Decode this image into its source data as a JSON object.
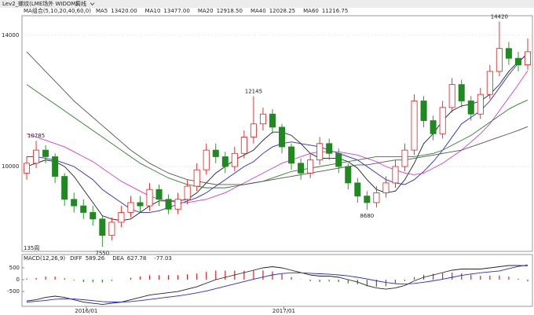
{
  "header": {
    "instrument": "Lev2_螺纹(LME场外 WIDOM)",
    "period": "周线"
  },
  "chart_data": [
    {
      "type": "candlestick",
      "legend_title": "MA组合(5,10,20,40,60,0)",
      "period_label": "135周",
      "ylim": [
        7413,
        14599
      ],
      "yticks": [
        14000,
        10000
      ],
      "grid": true,
      "xlim": [
        -0.5,
        53.5
      ],
      "xticks": [
        {
          "value": 6.3,
          "label": "2016/01"
        },
        {
          "value": 27.2,
          "label": "2017/01"
        }
      ],
      "up_color": "#e02020",
      "down_color": "#1f8a1f",
      "open": [
        9800,
        10100,
        10500,
        10300,
        9700,
        9000,
        8800,
        8600,
        8400,
        7900,
        8300,
        8600,
        8900,
        8800,
        9300,
        9000,
        8700,
        9000,
        9400,
        9900,
        10500,
        10300,
        10000,
        10400,
        10900,
        11300,
        11600,
        11200,
        10600,
        10100,
        9800,
        10200,
        10700,
        10400,
        10000,
        9500,
        9100,
        8900,
        9200,
        9500,
        10000,
        10500,
        12000,
        11400,
        11000,
        11800,
        12500,
        12000,
        11600,
        12200,
        12900,
        13600,
        13300,
        13100
      ],
      "high": [
        10300,
        10785,
        10650,
        10400,
        9800,
        9200,
        9000,
        8800,
        8500,
        8450,
        8800,
        9100,
        9100,
        9500,
        9450,
        9150,
        9200,
        9600,
        10100,
        10700,
        10700,
        10450,
        10600,
        11100,
        12145,
        11800,
        11750,
        11300,
        10700,
        10250,
        10400,
        10900,
        10850,
        10550,
        10100,
        9650,
        9250,
        9400,
        9700,
        10200,
        10700,
        12200,
        12150,
        11550,
        12000,
        12700,
        12650,
        12150,
        12400,
        13100,
        14420,
        13800,
        13500,
        13900
      ],
      "low": [
        9600,
        9950,
        10100,
        9500,
        8800,
        8600,
        8400,
        8200,
        7550,
        7750,
        8150,
        8450,
        8600,
        8650,
        8800,
        8550,
        8550,
        8850,
        9250,
        9750,
        10100,
        9800,
        9850,
        10250,
        10700,
        11100,
        11000,
        10400,
        9900,
        9600,
        9650,
        10050,
        10200,
        9800,
        9300,
        8900,
        8680,
        8750,
        9050,
        9350,
        9850,
        10350,
        11200,
        10800,
        10850,
        11650,
        11800,
        11400,
        11450,
        12050,
        12750,
        13100,
        12900,
        12950
      ],
      "close": [
        10100,
        10500,
        10300,
        9700,
        9000,
        8800,
        8600,
        8400,
        7900,
        8300,
        8600,
        8900,
        8800,
        9300,
        9000,
        8700,
        9000,
        9400,
        9900,
        10500,
        10300,
        10000,
        10400,
        10900,
        11300,
        11600,
        11200,
        10600,
        10100,
        9800,
        10200,
        10700,
        10400,
        10000,
        9500,
        9100,
        8900,
        9200,
        9500,
        10000,
        10500,
        12000,
        11400,
        11000,
        11800,
        12500,
        12000,
        11600,
        12200,
        12900,
        13600,
        13300,
        13100,
        13500
      ],
      "annotations": [
        {
          "x": 1,
          "value": 10785,
          "position": "above"
        },
        {
          "x": 8,
          "value": 7550,
          "position": "below"
        },
        {
          "x": 24,
          "value": 12145,
          "position": "above"
        },
        {
          "x": 36,
          "value": 8680,
          "position": "below"
        },
        {
          "x": 50,
          "value": 14420,
          "position": "above"
        }
      ],
      "series": [
        {
          "name": "MA5",
          "legend_value": "13420.00",
          "color": "#222222",
          "values": [
            10000,
            10100,
            10200,
            10150,
            10000,
            9700,
            9300,
            8900,
            8500,
            8400,
            8350,
            8400,
            8600,
            8800,
            8950,
            8950,
            8950,
            9000,
            9200,
            9500,
            9800,
            10000,
            10200,
            10350,
            10500,
            10800,
            11050,
            11050,
            10950,
            10700,
            10400,
            10250,
            10250,
            10250,
            10150,
            9950,
            9600,
            9300,
            9200,
            9250,
            9600,
            10100,
            10700,
            11000,
            11400,
            11700,
            11850,
            11900,
            12000,
            12200,
            12500,
            12900,
            13200,
            13420
          ]
        },
        {
          "name": "MA10",
          "legend_value": "13477.00",
          "color": "#2a2ad0",
          "values": [
            10300,
            10300,
            10250,
            10200,
            10100,
            10000,
            9800,
            9600,
            9300,
            9100,
            8900,
            8700,
            8600,
            8600,
            8650,
            8750,
            8850,
            8950,
            9050,
            9200,
            9400,
            9600,
            9800,
            10000,
            10150,
            10400,
            10600,
            10700,
            10750,
            10700,
            10650,
            10600,
            10500,
            10400,
            10300,
            10200,
            10000,
            9800,
            9600,
            9500,
            9450,
            9600,
            9850,
            10150,
            10500,
            10900,
            11300,
            11500,
            11700,
            12000,
            12400,
            12800,
            13150,
            13477
          ]
        },
        {
          "name": "MA20",
          "legend_value": "12918.50",
          "color": "#d040d0",
          "values": [
            11000,
            10900,
            10800,
            10700,
            10600,
            10450,
            10300,
            10150,
            9950,
            9750,
            9550,
            9400,
            9250,
            9100,
            9000,
            8950,
            8900,
            8900,
            8950,
            9000,
            9100,
            9200,
            9350,
            9500,
            9650,
            9800,
            9950,
            10100,
            10200,
            10300,
            10400,
            10450,
            10450,
            10450,
            10400,
            10350,
            10250,
            10150,
            10000,
            9900,
            9800,
            9750,
            9800,
            9950,
            10100,
            10300,
            10500,
            10750,
            11000,
            11300,
            11700,
            12100,
            12500,
            12918.5
          ]
        },
        {
          "name": "MA40",
          "legend_value": "12028.25",
          "color": "#2f7f2f",
          "values": [
            12500,
            12300,
            12100,
            11900,
            11700,
            11500,
            11300,
            11100,
            10900,
            10700,
            10500,
            10300,
            10100,
            9950,
            9800,
            9650,
            9550,
            9450,
            9400,
            9350,
            9350,
            9350,
            9400,
            9450,
            9500,
            9550,
            9650,
            9750,
            9850,
            9900,
            9950,
            10000,
            10050,
            10100,
            10150,
            10200,
            10250,
            10300,
            10300,
            10300,
            10300,
            10300,
            10350,
            10400,
            10500,
            10650,
            10800,
            10950,
            11150,
            11350,
            11550,
            11750,
            11900,
            12028.25
          ]
        },
        {
          "name": "MA60",
          "legend_value": "11216.75",
          "color": "#555555",
          "values": [
            13500,
            13200,
            12900,
            12600,
            12300,
            12000,
            11750,
            11500,
            11250,
            11000,
            10750,
            10500,
            10300,
            10100,
            9950,
            9800,
            9700,
            9600,
            9550,
            9500,
            9450,
            9450,
            9450,
            9450,
            9500,
            9550,
            9600,
            9650,
            9700,
            9750,
            9800,
            9850,
            9900,
            9950,
            10000,
            10050,
            10050,
            10100,
            10150,
            10200,
            10200,
            10250,
            10300,
            10350,
            10400,
            10450,
            10500,
            10600,
            10700,
            10800,
            10900,
            11000,
            11100,
            11216.75
          ]
        }
      ]
    },
    {
      "type": "macd",
      "title": "MACD(12,26,9)",
      "ylim": [
        -1133,
        1000
      ],
      "yticks": [
        500,
        0,
        -500
      ],
      "xlim": [
        -0.5,
        53.5
      ],
      "up_color": "#e02020",
      "down_color": "#1f8a1f",
      "histogram": {
        "legend_value": "-77.03",
        "values": [
          50,
          70,
          130,
          130,
          60,
          -30,
          -100,
          -110,
          -120,
          -50,
          0,
          80,
          140,
          190,
          190,
          190,
          190,
          230,
          260,
          330,
          380,
          380,
          380,
          380,
          380,
          390,
          350,
          240,
          110,
          10,
          -70,
          -100,
          -80,
          -100,
          -160,
          -200,
          -280,
          -300,
          -280,
          -180,
          -60,
          110,
          210,
          250,
          280,
          300,
          270,
          210,
          160,
          170,
          180,
          130,
          40,
          -77.03
        ]
      },
      "series": [
        {
          "name": "DIFF",
          "legend_value": "589.26",
          "color": "#222222",
          "values": [
            -900,
            -850,
            -750,
            -700,
            -750,
            -850,
            -950,
            -1000,
            -1050,
            -1000,
            -950,
            -850,
            -750,
            -650,
            -600,
            -550,
            -500,
            -400,
            -300,
            -150,
            0,
            100,
            200,
            300,
            400,
            500,
            550,
            500,
            400,
            300,
            200,
            150,
            150,
            100,
            0,
            -100,
            -250,
            -350,
            -400,
            -350,
            -250,
            -50,
            100,
            200,
            300,
            400,
            450,
            450,
            450,
            500,
            550,
            600,
            600,
            589.26
          ]
        },
        {
          "name": "DEA",
          "legend_value": "627.78",
          "color": "#2a2ad0",
          "values": [
            -950,
            -920,
            -880,
            -830,
            -810,
            -820,
            -850,
            -890,
            -930,
            -950,
            -950,
            -930,
            -890,
            -840,
            -790,
            -740,
            -690,
            -630,
            -560,
            -480,
            -380,
            -280,
            -180,
            -80,
            20,
            110,
            200,
            260,
            290,
            290,
            270,
            250,
            230,
            200,
            160,
            100,
            30,
            -50,
            -120,
            -170,
            -190,
            -160,
            -110,
            -50,
            20,
            100,
            180,
            240,
            290,
            330,
            370,
            470,
            560,
            627.78
          ]
        }
      ]
    }
  ]
}
